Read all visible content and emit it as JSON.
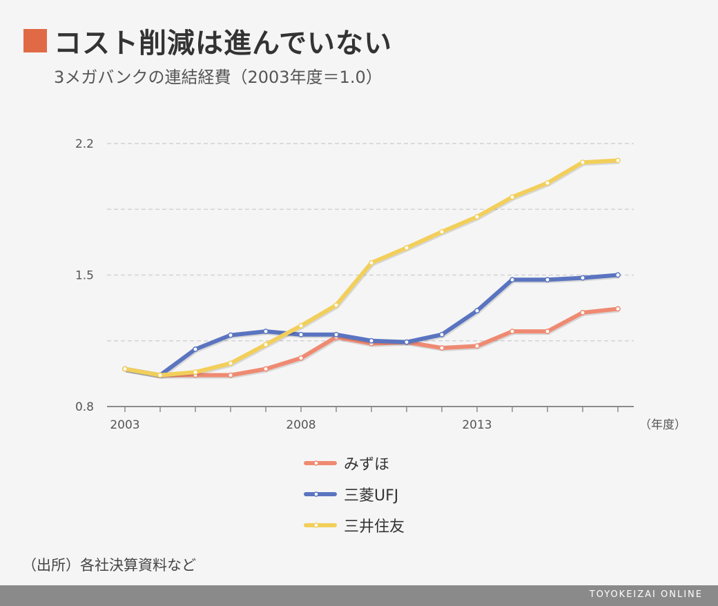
{
  "header": {
    "title": "コスト削減は進んでいない",
    "subtitle": "3メガバンクの連結経費（2003年度＝1.0）"
  },
  "chart_data": {
    "type": "line",
    "title": "コスト削減は進んでいない",
    "subtitle": "3メガバンクの連結経費（2003年度＝1.0）",
    "xlabel": "（年度）",
    "ylabel": "",
    "x": [
      2003,
      2004,
      2005,
      2006,
      2007,
      2008,
      2009,
      2010,
      2011,
      2012,
      2013,
      2014,
      2015,
      2016,
      2017
    ],
    "xticks": [
      "2003",
      "2008",
      "2013"
    ],
    "yticks": [
      "0.8",
      "1.5",
      "2.2"
    ],
    "ylim": [
      0.8,
      2.2
    ],
    "xlim": [
      2003,
      2017
    ],
    "grid": true,
    "legend_position": "bottom",
    "series": [
      {
        "name": "みずほ",
        "color": "#ef8a72",
        "values": [
          1.0,
          0.967,
          0.967,
          0.967,
          1.0,
          1.058,
          1.17,
          1.135,
          1.143,
          1.112,
          1.122,
          1.2,
          1.2,
          1.3,
          1.32
        ]
      },
      {
        "name": "三菱UFJ",
        "color": "#5a74c0",
        "values": [
          1.0,
          0.967,
          1.105,
          1.18,
          1.2,
          1.183,
          1.183,
          1.15,
          1.143,
          1.183,
          1.31,
          1.475,
          1.475,
          1.485,
          1.5
        ]
      },
      {
        "name": "三井住友",
        "color": "#f2cf5b",
        "values": [
          1.0,
          0.967,
          0.983,
          1.03,
          1.13,
          1.23,
          1.34,
          1.565,
          1.645,
          1.73,
          1.81,
          1.915,
          1.99,
          2.1,
          2.11
        ]
      }
    ]
  },
  "source": "（出所）各社決算資料など",
  "footer": {
    "brand": "TOYOKEIZAI ONLINE"
  }
}
